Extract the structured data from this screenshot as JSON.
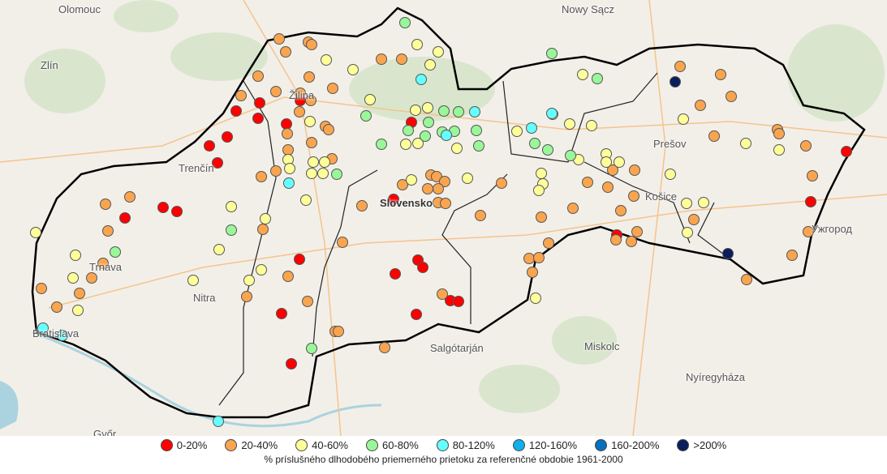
{
  "map": {
    "cities": [
      {
        "name": "Olomouc"
      },
      {
        "name": "Nowy Sącz"
      },
      {
        "name": "Zlín"
      },
      {
        "name": "Žilina"
      },
      {
        "name": "Trenčín"
      },
      {
        "name": "Prešov"
      },
      {
        "name": "Košice"
      },
      {
        "name": "Trnava"
      },
      {
        "name": "Nitra"
      },
      {
        "name": "Slovensko",
        "bold": true
      },
      {
        "name": "Bratislava"
      },
      {
        "name": "Salgótarján"
      },
      {
        "name": "Miskolc"
      },
      {
        "name": "Nyíregyháza"
      },
      {
        "name": "Ужгород"
      },
      {
        "name": "Győr"
      }
    ]
  },
  "legend": {
    "categories": [
      {
        "label": "0-20%",
        "color": "#ff0000"
      },
      {
        "label": "20-40%",
        "color": "#f9a54f"
      },
      {
        "label": "40-60%",
        "color": "#ffff99"
      },
      {
        "label": "60-80%",
        "color": "#99f799"
      },
      {
        "label": "80-120%",
        "color": "#66ffff"
      },
      {
        "label": "120-160%",
        "color": "#0fb0ec"
      },
      {
        "label": "160-200%",
        "color": "#0570bf"
      },
      {
        "label": ">200%",
        "color": "#0a1e5c"
      }
    ],
    "caption": "% príslušného dlhodobého priemerného prietoku za referenčné obdobie 1961-2000"
  }
}
